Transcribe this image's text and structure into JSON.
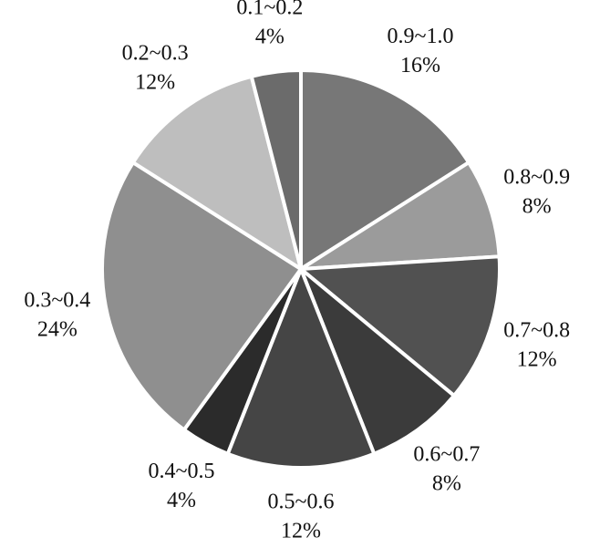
{
  "chart_data": {
    "type": "pie",
    "categories": [
      "0.9~1.0",
      "0.8~0.9",
      "0.7~0.8",
      "0.6~0.7",
      "0.5~0.6",
      "0.4~0.5",
      "0.3~0.4",
      "0.2~0.3",
      "0.1~0.2"
    ],
    "values": [
      16,
      8,
      12,
      8,
      12,
      4,
      24,
      12,
      4
    ],
    "value_labels": [
      "16%",
      "8%",
      "12%",
      "8%",
      "12%",
      "4%",
      "24%",
      "12%",
      "4%"
    ],
    "colors": [
      "#777777",
      "#9b9b9b",
      "#515151",
      "#3b3b3b",
      "#454545",
      "#2b2b2b",
      "#8f8f8f",
      "#bebebe",
      "#6b6b6b"
    ]
  }
}
